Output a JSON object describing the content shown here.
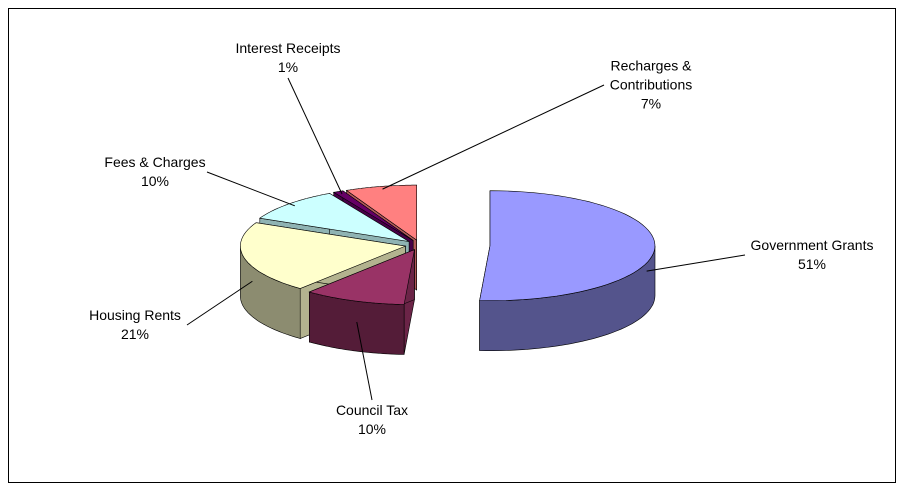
{
  "chart_data": {
    "type": "pie3d",
    "categories": [
      "Government Grants",
      "Council Tax",
      "Housing Rents",
      "Fees & Charges",
      "Interest Receipts",
      "Recharges & Contributions"
    ],
    "values": [
      51,
      10,
      21,
      10,
      1,
      7
    ],
    "value_labels": [
      "51%",
      "10%",
      "21%",
      "10%",
      "1%",
      "7%"
    ],
    "colors": [
      "#9999ff",
      "#993366",
      "#ffffcc",
      "#ccffff",
      "#660066",
      "#ff8080"
    ]
  }
}
